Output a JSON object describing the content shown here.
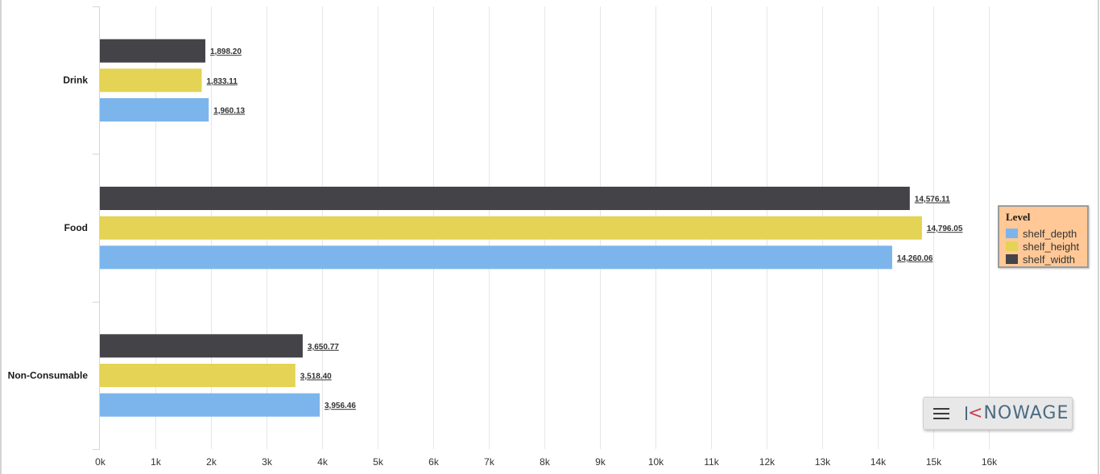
{
  "chart_data": {
    "type": "bar",
    "orientation": "horizontal",
    "categories": [
      "Drink",
      "Food",
      "Non-Consumable"
    ],
    "series": [
      {
        "name": "shelf_width",
        "color": "#434348",
        "values": [
          1898.2,
          14576.11,
          3650.77
        ],
        "labels": [
          "1,898.20",
          "14,576.11",
          "3,650.77"
        ]
      },
      {
        "name": "shelf_height",
        "color": "#e4d354",
        "values": [
          1833.11,
          14796.05,
          3518.4
        ],
        "labels": [
          "1,833.11",
          "14,796.05",
          "3,518.40"
        ]
      },
      {
        "name": "shelf_depth",
        "color": "#7cb5ec",
        "values": [
          1960.13,
          14260.06,
          3956.46
        ],
        "labels": [
          "1,960.13",
          "14,260.06",
          "3,956.46"
        ]
      }
    ],
    "xlim": [
      0,
      16000
    ],
    "tick_values": [
      0,
      1000,
      2000,
      3000,
      4000,
      5000,
      6000,
      7000,
      8000,
      9000,
      10000,
      11000,
      12000,
      13000,
      14000,
      15000,
      16000
    ],
    "tick_labels": [
      "0k",
      "1k",
      "2k",
      "3k",
      "4k",
      "5k",
      "6k",
      "7k",
      "8k",
      "9k",
      "10k",
      "11k",
      "12k",
      "13k",
      "14k",
      "15k",
      "16k"
    ],
    "grid": true,
    "legend_position": "right"
  },
  "legend": {
    "title": "Level",
    "items": [
      {
        "name": "shelf_depth",
        "color": "#7cb5ec"
      },
      {
        "name": "shelf_height",
        "color": "#e4d354"
      },
      {
        "name": "shelf_width",
        "color": "#434348"
      }
    ]
  },
  "brand": {
    "menu_icon": "hamburger-menu-icon",
    "logo_k": "K",
    "logo_rest": "NOWAGE"
  }
}
